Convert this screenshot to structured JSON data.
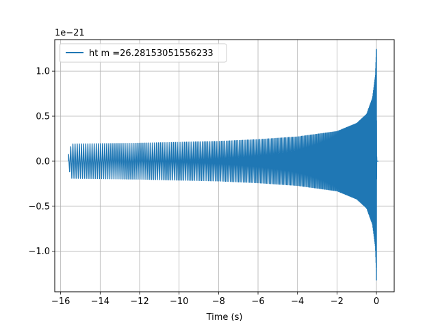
{
  "chart_data": {
    "type": "line",
    "title": "",
    "xlabel": "Time (s)",
    "ylabel": "",
    "y_offset_label": "1e−21",
    "xlim": [
      -16.3,
      0.9
    ],
    "ylim": [
      -1.45,
      1.35
    ],
    "xticks": [
      -16,
      -14,
      -12,
      -10,
      -8,
      -6,
      -4,
      -2,
      0
    ],
    "xtick_labels": [
      "−16",
      "−14",
      "−12",
      "−10",
      "−8",
      "−6",
      "−4",
      "−2",
      "0"
    ],
    "yticks": [
      -1.0,
      -0.5,
      0.0,
      0.5,
      1.0
    ],
    "ytick_labels": [
      "−1.0",
      "−0.5",
      "0.0",
      "0.5",
      "1.0"
    ],
    "grid": true,
    "legend": {
      "placement": "top-left"
    },
    "series": [
      {
        "name": "ht m =26.28153051556233",
        "color": "#1f77b4",
        "t_start": -15.6,
        "t_merger": 0.0,
        "t_end": 0.1,
        "envelope": [
          {
            "t": -15.5,
            "amp": 0.19
          },
          {
            "t": -12.0,
            "amp": 0.2
          },
          {
            "t": -8.0,
            "amp": 0.22
          },
          {
            "t": -6.0,
            "amp": 0.24
          },
          {
            "t": -4.0,
            "amp": 0.27
          },
          {
            "t": -2.0,
            "amp": 0.33
          },
          {
            "t": -1.0,
            "amp": 0.42
          },
          {
            "t": -0.5,
            "amp": 0.52
          },
          {
            "t": -0.2,
            "amp": 0.7
          },
          {
            "t": -0.05,
            "amp": 0.95
          },
          {
            "t": 0.0,
            "amp": 1.25
          }
        ],
        "peak_max": 1.23,
        "peak_min": -1.32
      }
    ]
  }
}
